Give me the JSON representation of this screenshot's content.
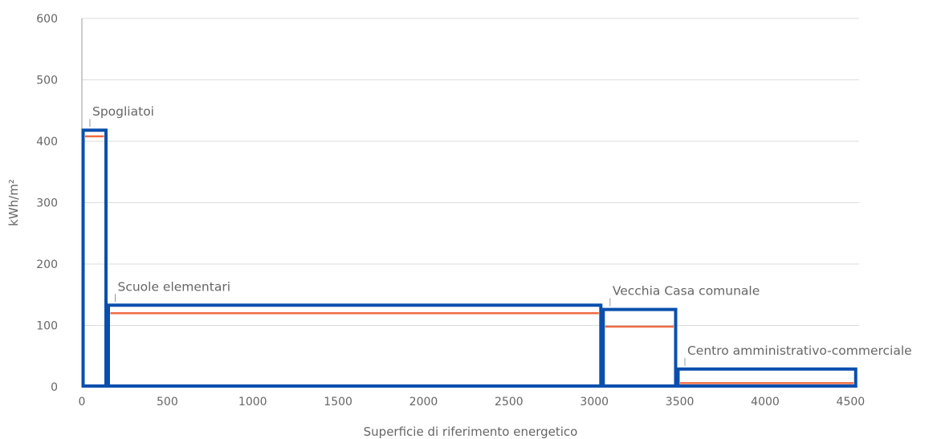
{
  "chart_data": {
    "type": "bar",
    "xlabel": "Superficie di riferimento energetico",
    "ylabel": "kWh/m²",
    "xlim": [
      0,
      4550
    ],
    "ylim": [
      0,
      600
    ],
    "x_ticks": [
      0,
      500,
      1000,
      1500,
      2000,
      2500,
      3000,
      3500,
      4000,
      4500
    ],
    "y_ticks": [
      0,
      100,
      200,
      300,
      400,
      500,
      600
    ],
    "grid": true,
    "colors": {
      "bar_outline": "#0a4fad",
      "reference_line": "#ef6c45",
      "grid": "#dcdcdc",
      "text": "#666666"
    },
    "bars": [
      {
        "label": "Spogliatoi",
        "x_start": 0,
        "x_end": 148,
        "value": 418,
        "reference": 408
      },
      {
        "label": "Scuole elementari",
        "x_start": 148,
        "x_end": 3045,
        "value": 133,
        "reference": 120
      },
      {
        "label": "Vecchia Casa comunale",
        "x_start": 3045,
        "x_end": 3483,
        "value": 126,
        "reference": 98
      },
      {
        "label": "Centro amministrativo-commerciale",
        "x_start": 3483,
        "x_end": 4537,
        "value": 29,
        "reference": 6
      }
    ]
  }
}
